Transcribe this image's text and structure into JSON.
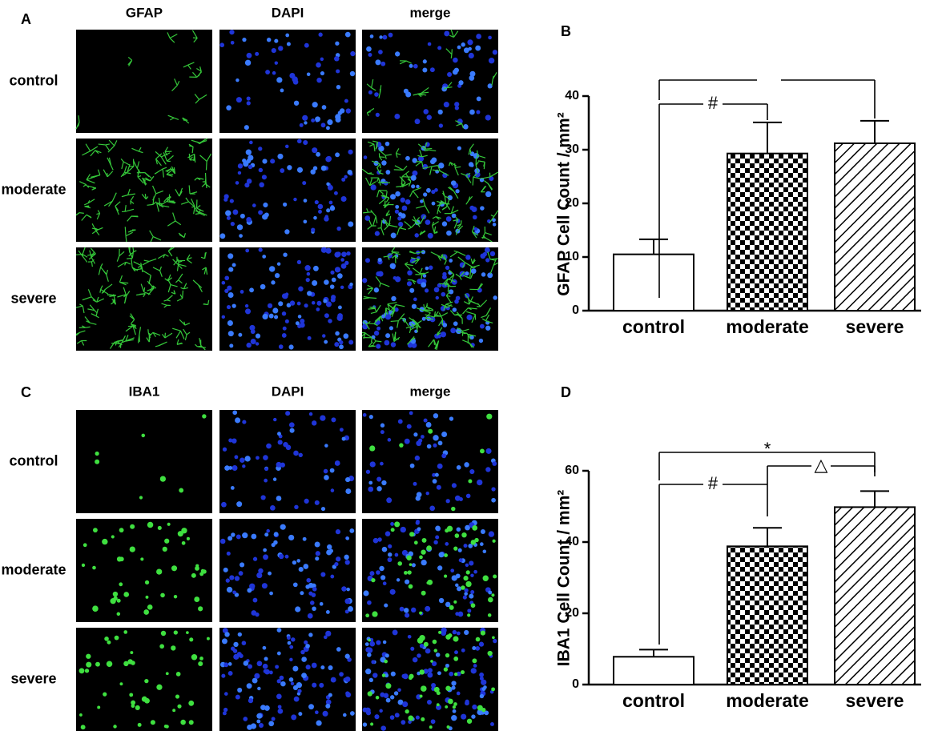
{
  "panels": [
    {
      "label": "A",
      "columns": [
        "GFAP",
        "DAPI",
        "merge"
      ],
      "rows": [
        "control",
        "moderate",
        "severe"
      ]
    },
    {
      "label": "C",
      "columns": [
        "IBA1",
        "DAPI",
        "merge"
      ],
      "rows": [
        "control",
        "moderate",
        "severe"
      ]
    }
  ],
  "chart_data": [
    {
      "type": "bar",
      "label": "B",
      "ylabel": "GFAP Cell Count / mm²",
      "categories": [
        "control",
        "moderate",
        "severe"
      ],
      "values": [
        10.5,
        29.3,
        31.2
      ],
      "errors": [
        2.8,
        5.8,
        4.2
      ],
      "patterns": [
        "none",
        "checker",
        "hatch"
      ],
      "ylim": [
        0,
        40
      ],
      "yticks": [
        0,
        10,
        20,
        30,
        40
      ],
      "annotations": [
        "#"
      ]
    },
    {
      "type": "bar",
      "label": "D",
      "ylabel": "IBA1 Cell Count / mm²",
      "categories": [
        "control",
        "moderate",
        "severe"
      ],
      "values": [
        7.8,
        38.8,
        49.8
      ],
      "errors": [
        2.0,
        5.2,
        4.5
      ],
      "patterns": [
        "none",
        "checker",
        "hatch"
      ],
      "ylim": [
        0,
        60
      ],
      "yticks": [
        0,
        20,
        40,
        60
      ],
      "annotations": [
        "*",
        "#",
        "△"
      ]
    }
  ]
}
